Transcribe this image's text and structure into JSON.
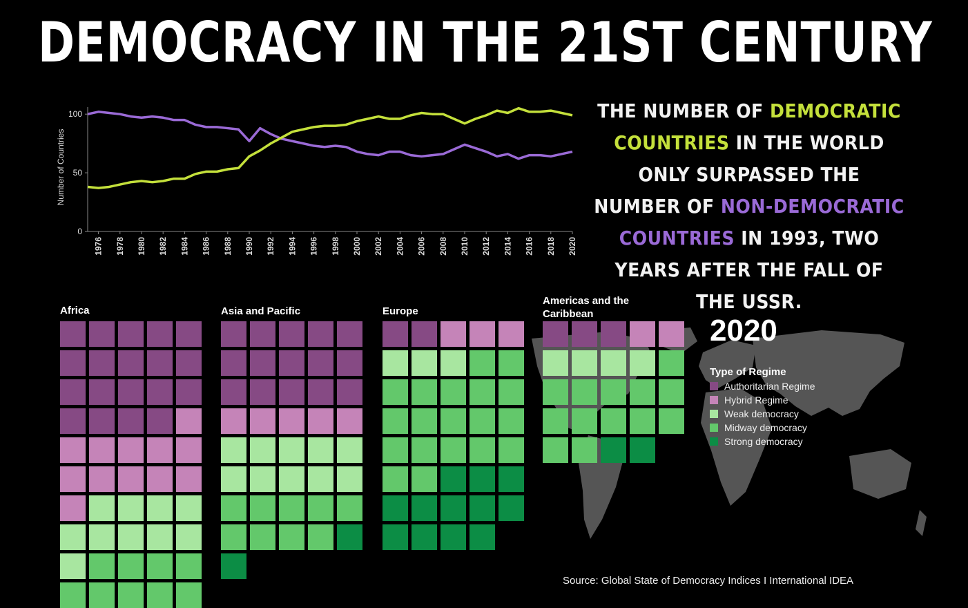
{
  "title": "Democracy in the 21st Century",
  "narrative": {
    "p1": "The number of ",
    "dem": "democratic countries",
    "p2": " in the world only surpassed the number of ",
    "nondem": "non-democratic countries",
    "p3": " in 1993, two years after the fall of the USSR."
  },
  "colors": {
    "democratic": "#c4e03b",
    "non_democratic": "#9a6ad6",
    "authoritarian": "#864a84",
    "hybrid": "#c584b8",
    "weak": "#a8e6a0",
    "midway": "#63c86b",
    "strong": "#0c8d45",
    "map": "#555555"
  },
  "chart_data": [
    {
      "type": "line",
      "xlabel": "",
      "ylabel": "Number of Countries",
      "ylim": [
        0,
        100
      ],
      "yticks": [
        "0",
        "50",
        "100"
      ],
      "x": [
        1975,
        1976,
        1977,
        1978,
        1979,
        1980,
        1981,
        1982,
        1983,
        1984,
        1985,
        1986,
        1987,
        1988,
        1989,
        1990,
        1991,
        1992,
        1993,
        1994,
        1995,
        1996,
        1997,
        1998,
        1999,
        2000,
        2001,
        2002,
        2003,
        2004,
        2005,
        2006,
        2007,
        2008,
        2009,
        2010,
        2011,
        2012,
        2013,
        2014,
        2015,
        2016,
        2017,
        2018,
        2019,
        2020
      ],
      "xticks": [
        "1976",
        "1978",
        "1980",
        "1982",
        "1984",
        "1986",
        "1988",
        "1990",
        "1992",
        "1994",
        "1996",
        "1998",
        "2000",
        "2002",
        "2004",
        "2006",
        "2008",
        "2010",
        "2012",
        "2014",
        "2016",
        "2018",
        "2020"
      ],
      "series": [
        {
          "color": "#9a6ad6",
          "values": [
            100,
            102,
            101,
            100,
            98,
            97,
            98,
            97,
            95,
            95,
            91,
            89,
            89,
            88,
            87,
            77,
            88,
            83,
            79,
            77,
            75,
            73,
            72,
            73,
            72,
            68,
            66,
            65,
            68,
            68,
            65,
            64,
            65,
            66,
            70,
            74,
            71,
            68,
            64,
            66,
            62,
            65,
            65,
            64,
            66,
            68
          ]
        },
        {
          "color": "#c4e03b",
          "values": [
            38,
            37,
            38,
            40,
            42,
            43,
            42,
            43,
            45,
            45,
            49,
            51,
            51,
            53,
            54,
            64,
            69,
            75,
            80,
            85,
            87,
            89,
            90,
            90,
            91,
            94,
            96,
            98,
            96,
            96,
            99,
            101,
            100,
            100,
            96,
            92,
            96,
            99,
            103,
            101,
            105,
            102,
            102,
            103,
            101,
            99
          ]
        }
      ]
    },
    {
      "type": "table",
      "year": "2020",
      "legend_title": "Type of Regime",
      "categories": [
        "Authoritarian Regime",
        "Hybrid Regime",
        "Weak democracy",
        "Midway democracy",
        "Strong democracy"
      ],
      "regions": [
        {
          "name": "Africa",
          "counts": [
            19,
            12,
            10,
            9,
            0
          ]
        },
        {
          "name": "Asia and Pacific",
          "counts": [
            15,
            5,
            10,
            9,
            2
          ]
        },
        {
          "name": "Europe",
          "counts": [
            2,
            3,
            3,
            19,
            12
          ]
        },
        {
          "name": "Americas and the Caribbean",
          "counts": [
            3,
            2,
            4,
            13,
            2
          ]
        }
      ]
    }
  ],
  "source": "Source: Global State of Democracy Indices I International IDEA"
}
